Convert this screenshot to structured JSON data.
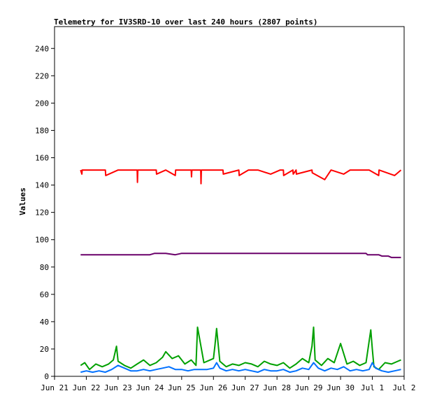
{
  "chart_data": {
    "type": "line",
    "title": "Telemetry for IV3SRD-10 over last 240 hours (2807 points)",
    "ylabel": "Values",
    "xlabel": "",
    "ylim": [
      0,
      256
    ],
    "xlim": [
      0,
      11
    ],
    "y_ticks": [
      0,
      20,
      40,
      60,
      80,
      100,
      120,
      140,
      160,
      180,
      200,
      220,
      240
    ],
    "x_ticks": [
      {
        "v": 0,
        "label": "Jun 21"
      },
      {
        "v": 1,
        "label": "Jun 22"
      },
      {
        "v": 2,
        "label": "Jun 23"
      },
      {
        "v": 3,
        "label": "Jun 24"
      },
      {
        "v": 4,
        "label": "Jun 25"
      },
      {
        "v": 5,
        "label": "Jun 26"
      },
      {
        "v": 6,
        "label": "Jun 27"
      },
      {
        "v": 7,
        "label": "Jun 28"
      },
      {
        "v": 8,
        "label": "Jun 29"
      },
      {
        "v": 9,
        "label": "Jun 30"
      },
      {
        "v": 10,
        "label": "Jul 1"
      },
      {
        "v": 11,
        "label": "Jul 2"
      }
    ],
    "grid": false,
    "legend": "none",
    "series": [
      {
        "color": "#ff0000",
        "x": [
          0.82,
          0.86,
          0.87,
          1.6,
          1.61,
          2.0,
          2.6,
          2.61,
          2.62,
          3.2,
          3.21,
          3.5,
          3.8,
          3.81,
          4.3,
          4.31,
          4.32,
          4.6,
          4.61,
          4.62,
          5.3,
          5.31,
          5.8,
          5.81,
          6.1,
          6.4,
          6.8,
          7.1,
          7.2,
          7.21,
          7.5,
          7.51,
          7.6,
          7.61,
          8.1,
          8.11,
          8.5,
          8.7,
          9.1,
          9.3,
          9.9,
          10.2,
          10.21,
          10.7,
          10.9
        ],
        "y": [
          151,
          148,
          151,
          151,
          147,
          151,
          151,
          142,
          151,
          151,
          148,
          151,
          147,
          151,
          151,
          146,
          151,
          151,
          141,
          151,
          151,
          148,
          151,
          147,
          151,
          151,
          148,
          151,
          151,
          147,
          151,
          148,
          151,
          148,
          151,
          149,
          144,
          151,
          148,
          151,
          151,
          147,
          151,
          147,
          151
        ]
      },
      {
        "color": "#6a006a",
        "x": [
          0.82,
          1.0,
          2.0,
          3.0,
          3.15,
          3.5,
          3.8,
          4.0,
          5.0,
          6.0,
          7.0,
          8.0,
          9.0,
          9.8,
          9.85,
          10.2,
          10.3,
          10.5,
          10.6,
          10.9
        ],
        "y": [
          89,
          89,
          89,
          89,
          90,
          90,
          89,
          90,
          90,
          90,
          90,
          90,
          90,
          90,
          89,
          89,
          88,
          88,
          87,
          87
        ]
      },
      {
        "color": "#00a000",
        "x": [
          0.82,
          0.95,
          1.1,
          1.3,
          1.5,
          1.7,
          1.85,
          1.95,
          2.0,
          2.2,
          2.4,
          2.6,
          2.8,
          3.0,
          3.2,
          3.4,
          3.5,
          3.7,
          3.9,
          4.1,
          4.3,
          4.45,
          4.5,
          4.7,
          4.9,
          5.0,
          5.05,
          5.1,
          5.2,
          5.4,
          5.6,
          5.8,
          6.0,
          6.2,
          6.4,
          6.6,
          6.8,
          7.0,
          7.2,
          7.4,
          7.6,
          7.8,
          8.0,
          8.1,
          8.15,
          8.2,
          8.4,
          8.6,
          8.8,
          9.0,
          9.2,
          9.4,
          9.6,
          9.8,
          9.95,
          10.0,
          10.05,
          10.2,
          10.4,
          10.6,
          10.8,
          10.9
        ],
        "y": [
          8,
          10,
          5,
          9,
          7,
          9,
          12,
          22,
          11,
          8,
          6,
          9,
          12,
          8,
          10,
          14,
          18,
          13,
          15,
          9,
          12,
          8,
          36,
          10,
          12,
          13,
          23,
          35,
          11,
          7,
          9,
          8,
          10,
          9,
          7,
          11,
          9,
          8,
          10,
          6,
          9,
          13,
          10,
          22,
          36,
          12,
          8,
          13,
          10,
          24,
          9,
          11,
          8,
          10,
          34,
          20,
          7,
          5,
          10,
          9,
          11,
          12
        ]
      },
      {
        "color": "#0070ff",
        "x": [
          0.82,
          1.0,
          1.2,
          1.4,
          1.6,
          1.8,
          2.0,
          2.2,
          2.4,
          2.6,
          2.8,
          3.0,
          3.2,
          3.4,
          3.6,
          3.8,
          4.0,
          4.2,
          4.4,
          4.6,
          4.8,
          5.0,
          5.1,
          5.2,
          5.4,
          5.6,
          5.8,
          6.0,
          6.2,
          6.4,
          6.6,
          6.8,
          7.0,
          7.2,
          7.4,
          7.6,
          7.8,
          8.0,
          8.15,
          8.3,
          8.5,
          8.7,
          8.9,
          9.1,
          9.3,
          9.5,
          9.7,
          9.9,
          10.0,
          10.1,
          10.3,
          10.5,
          10.7,
          10.9
        ],
        "y": [
          3,
          4,
          3,
          4,
          3,
          5,
          8,
          6,
          4,
          4,
          5,
          4,
          5,
          6,
          7,
          5,
          5,
          4,
          5,
          5,
          5,
          6,
          10,
          6,
          4,
          5,
          4,
          5,
          4,
          3,
          5,
          4,
          4,
          5,
          3,
          4,
          6,
          5,
          10,
          6,
          4,
          6,
          5,
          7,
          4,
          5,
          4,
          5,
          10,
          6,
          4,
          3,
          4,
          5
        ]
      },
      {
        "color": "#000000",
        "x": [
          0.82,
          10.9
        ],
        "y": [
          0,
          0
        ]
      }
    ]
  }
}
